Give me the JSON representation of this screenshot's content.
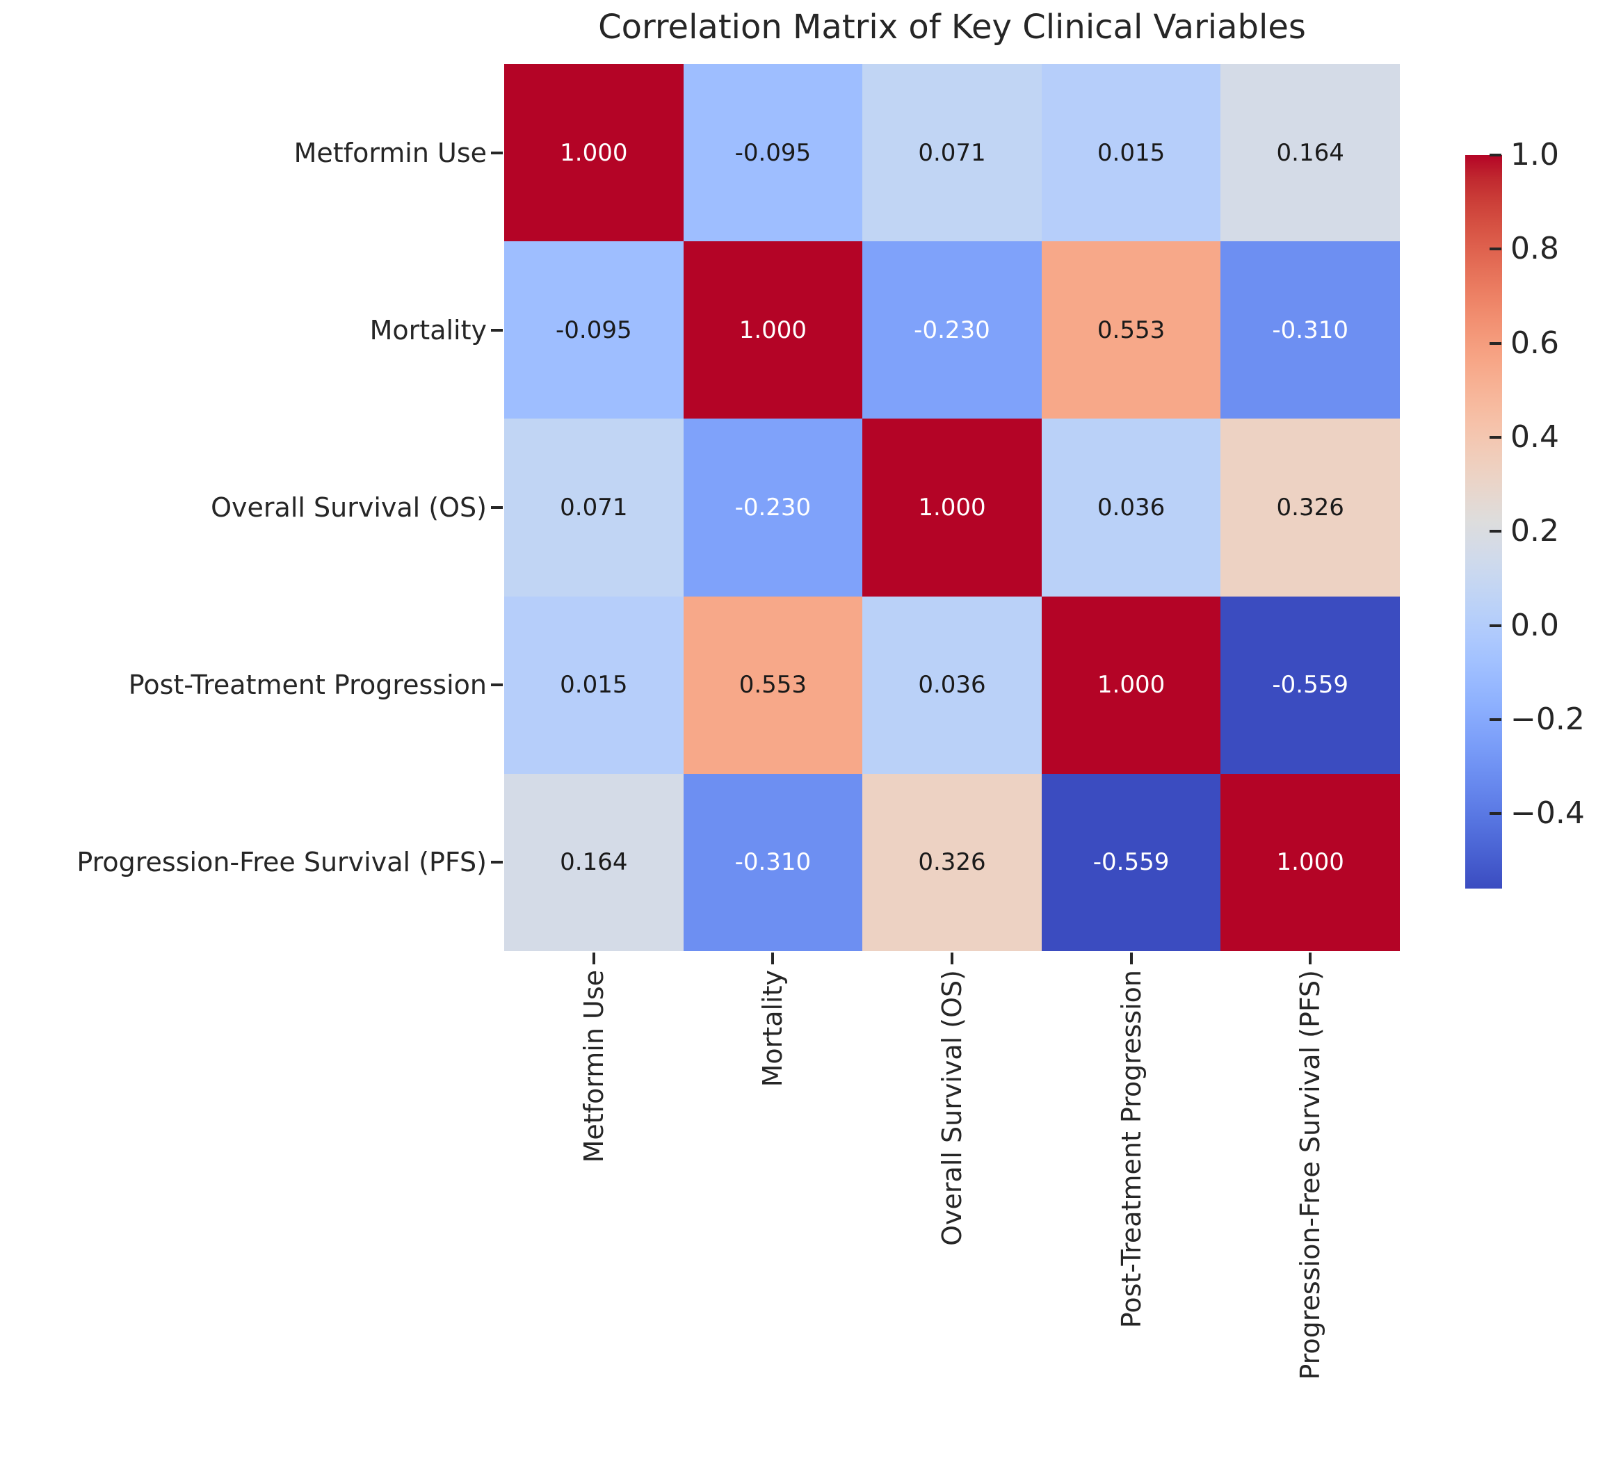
{
  "title": "Correlation Matrix of Key Clinical Variables",
  "chart_data": {
    "type": "heatmap",
    "variables": [
      "Metformin Use",
      "Mortality",
      "Overall Survival (OS)",
      "Post-Treatment Progression",
      "Progression-Free Survival (PFS)"
    ],
    "matrix": [
      [
        1.0,
        -0.095,
        0.071,
        0.015,
        0.164
      ],
      [
        -0.095,
        1.0,
        -0.23,
        0.553,
        -0.31
      ],
      [
        0.071,
        -0.23,
        1.0,
        0.036,
        0.326
      ],
      [
        0.015,
        0.553,
        0.036,
        1.0,
        -0.559
      ],
      [
        0.164,
        -0.31,
        0.326,
        -0.559,
        1.0
      ]
    ],
    "annotation_format": ".3f",
    "vmin": -0.559,
    "vmax": 1.0,
    "colormap_name": "coolwarm",
    "colormap_anchors": [
      [
        59,
        76,
        192
      ],
      [
        68,
        90,
        204
      ],
      [
        77,
        104,
        215
      ],
      [
        87,
        117,
        225
      ],
      [
        98,
        130,
        234
      ],
      [
        108,
        142,
        241
      ],
      [
        119,
        154,
        247
      ],
      [
        130,
        165,
        251
      ],
      [
        141,
        176,
        254
      ],
      [
        152,
        185,
        255
      ],
      [
        163,
        194,
        255
      ],
      [
        174,
        201,
        253
      ],
      [
        184,
        208,
        249
      ],
      [
        194,
        213,
        244
      ],
      [
        204,
        217,
        238
      ],
      [
        213,
        219,
        230
      ],
      [
        221,
        221,
        221
      ],
      [
        229,
        216,
        209
      ],
      [
        236,
        211,
        197
      ],
      [
        241,
        204,
        185
      ],
      [
        245,
        196,
        173
      ],
      [
        247,
        187,
        160
      ],
      [
        247,
        177,
        148
      ],
      [
        247,
        166,
        135
      ],
      [
        244,
        154,
        123
      ],
      [
        241,
        141,
        111
      ],
      [
        236,
        127,
        99
      ],
      [
        229,
        112,
        88
      ],
      [
        222,
        96,
        77
      ],
      [
        213,
        80,
        66
      ],
      [
        203,
        62,
        56
      ],
      [
        192,
        40,
        47
      ],
      [
        180,
        4,
        38
      ]
    ],
    "colorbar_ticks": [
      1.0,
      0.8,
      0.6,
      0.4,
      0.2,
      0.0,
      -0.2,
      -0.4
    ],
    "colorbar_tick_labels": [
      "1.0",
      "0.8",
      "0.6",
      "0.4",
      "0.2",
      "0.0",
      "−0.2",
      "−0.4"
    ],
    "legend_position": "right-colorbar",
    "grid": false,
    "annotation_color_dark": "#1a1a1a",
    "annotation_color_light": "#ffffff",
    "axis_text_color": "#262626"
  }
}
